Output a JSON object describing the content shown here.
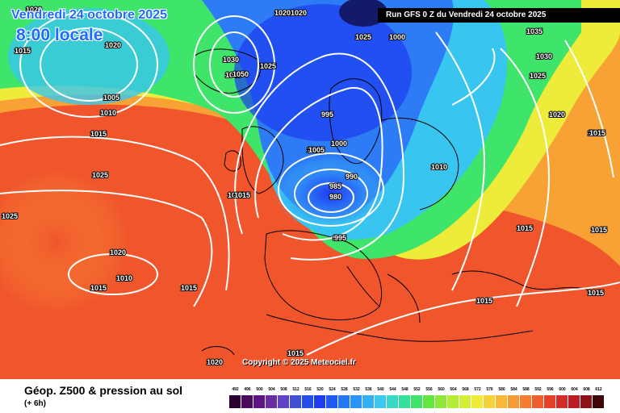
{
  "header": {
    "date_title": "Vendredi 24 octobre 2025",
    "time_title": "8:00 locale",
    "run_banner": "Run GFS 0 Z du Vendredi 24 octobre 2025",
    "copyright": "Copyright © 2025 Meteociel.fr"
  },
  "footer": {
    "product_title": "Géop. Z500 & pression au sol",
    "forecast_offset": "(+ 6h)"
  },
  "legend": {
    "values": [
      "492",
      "496",
      "500",
      "504",
      "508",
      "512",
      "516",
      "520",
      "524",
      "528",
      "532",
      "536",
      "540",
      "544",
      "548",
      "552",
      "556",
      "560",
      "564",
      "568",
      "572",
      "576",
      "580",
      "584",
      "588",
      "592",
      "596",
      "600",
      "604",
      "608",
      "612"
    ],
    "colors": [
      "#2b0030",
      "#4a0a5e",
      "#5e1483",
      "#6a2ba6",
      "#5e43c4",
      "#3f4fd8",
      "#2550e8",
      "#1f3cf0",
      "#1e5af2",
      "#2278f5",
      "#2b95f7",
      "#35b0f5",
      "#3fc8ee",
      "#39d9c8",
      "#35e09a",
      "#3fe26a",
      "#63e640",
      "#8ee83a",
      "#b4ec38",
      "#d4ee38",
      "#eeec3a",
      "#f6d23a",
      "#f8b838",
      "#f89a34",
      "#f67c30",
      "#f15e2c",
      "#e4402a",
      "#d42a28",
      "#b81e24",
      "#8c1218",
      "#3d0608"
    ]
  },
  "map": {
    "colors": {
      "sea_blue_deep": "#1e3cf0",
      "sea_blue": "#2d7cf6",
      "cyan": "#38c6f0",
      "green": "#3fe46a",
      "yellow": "#eeec3a",
      "orange": "#f8a236",
      "red": "#f0552c",
      "isobar": "#ffffff",
      "coastline": "#000000"
    },
    "isobar_labels": [
      "1020",
      "1020",
      "1015",
      "1030",
      "1025",
      "1020",
      "1005",
      "1010",
      "1015",
      "1025",
      "1025",
      "1015",
      "1020",
      "1010",
      "1015",
      "1015",
      "1020",
      "1025",
      "1040",
      "1050",
      "1025",
      "1020",
      "1005",
      "1000",
      "995",
      "995",
      "1000",
      "1005",
      "990",
      "985",
      "980",
      "995",
      "1010",
      "1015",
      "1015",
      "1015",
      "1035",
      "1030",
      "1025",
      "1020",
      "1015",
      "1015",
      "1015",
      "1015",
      "1015"
    ]
  }
}
